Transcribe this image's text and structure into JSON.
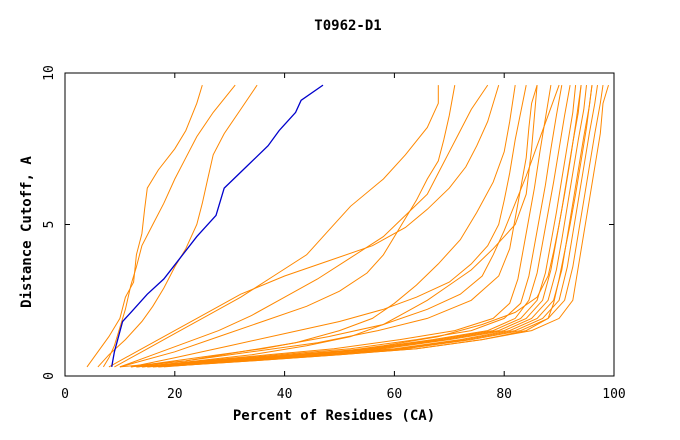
{
  "chart_data": {
    "type": "line",
    "title": "T0962-D1",
    "xlabel": "Percent of Residues (CA)",
    "ylabel": "Distance Cutoff, A",
    "xlim": [
      0,
      100
    ],
    "ylim": [
      0,
      10
    ],
    "xticks": [
      "0",
      "20",
      "40",
      "60",
      "80",
      "100"
    ],
    "yticks": [
      "0",
      "5",
      "10"
    ],
    "grid": false,
    "legend": "none",
    "colors": {
      "highlight": "#0000cc",
      "others": "#ff8800",
      "axes": "#000000",
      "background": "#ffffff"
    },
    "series": [
      {
        "highlight": true,
        "x": [
          8.5,
          9,
          10.5,
          12,
          15,
          18,
          21,
          24,
          27.5,
          29,
          33,
          37,
          39,
          42,
          43,
          47
        ],
        "y": [
          0.3,
          0.8,
          1.8,
          2.1,
          2.7,
          3.2,
          3.9,
          4.6,
          5.3,
          6.2,
          6.9,
          7.6,
          8.1,
          8.7,
          9.1,
          9.6
        ]
      },
      {
        "x": [
          4,
          6,
          8,
          10,
          11,
          12.5,
          13,
          14,
          14.5,
          15,
          17,
          20,
          22,
          24,
          25
        ],
        "y": [
          0.3,
          0.8,
          1.3,
          1.9,
          2.6,
          3.1,
          4.0,
          4.7,
          5.5,
          6.2,
          6.8,
          7.5,
          8.1,
          9.0,
          9.6
        ]
      },
      {
        "x": [
          7,
          8,
          9,
          10,
          11,
          12,
          13,
          14,
          16,
          18,
          20,
          22,
          24,
          27,
          31
        ],
        "y": [
          0.3,
          0.6,
          1.0,
          1.6,
          2.2,
          3.0,
          3.6,
          4.3,
          5.0,
          5.7,
          6.5,
          7.2,
          7.9,
          8.7,
          9.6
        ]
      },
      {
        "x": [
          6,
          8,
          11,
          14,
          16,
          18,
          20,
          22,
          24,
          25,
          26,
          27,
          29,
          32,
          35
        ],
        "y": [
          0.3,
          0.7,
          1.2,
          1.8,
          2.3,
          2.9,
          3.6,
          4.2,
          5.0,
          5.7,
          6.5,
          7.3,
          8.0,
          8.8,
          9.6
        ]
      },
      {
        "x": [
          9,
          14,
          20,
          26,
          32,
          38,
          44,
          48,
          52,
          58,
          62,
          66,
          68,
          68
        ],
        "y": [
          0.3,
          0.8,
          1.4,
          2.0,
          2.6,
          3.3,
          4.0,
          4.8,
          5.6,
          6.5,
          7.3,
          8.2,
          9.0,
          9.6
        ]
      },
      {
        "x": [
          10,
          16,
          22,
          28,
          34,
          40,
          46,
          52,
          58,
          62,
          66,
          68,
          70,
          72,
          74,
          77
        ],
        "y": [
          0.3,
          0.7,
          1.1,
          1.5,
          2.0,
          2.6,
          3.2,
          3.9,
          4.6,
          5.3,
          6.0,
          6.7,
          7.4,
          8.1,
          8.8,
          9.6
        ]
      },
      {
        "x": [
          10,
          20,
          28,
          36,
          44,
          50,
          55,
          58,
          60,
          62,
          64,
          66,
          68,
          69,
          70,
          71
        ],
        "y": [
          0.3,
          0.8,
          1.3,
          1.8,
          2.3,
          2.8,
          3.4,
          4.0,
          4.6,
          5.2,
          5.8,
          6.5,
          7.1,
          7.8,
          8.6,
          9.6
        ]
      },
      {
        "x": [
          8,
          14,
          20,
          26,
          32,
          40,
          48,
          56,
          62,
          66,
          70,
          73,
          75,
          77,
          79
        ],
        "y": [
          0.3,
          0.9,
          1.5,
          2.1,
          2.7,
          3.3,
          3.8,
          4.3,
          4.9,
          5.5,
          6.2,
          6.9,
          7.6,
          8.4,
          9.6
        ]
      },
      {
        "x": [
          12,
          20,
          30,
          40,
          50,
          58,
          64,
          70,
          74,
          77,
          79,
          80,
          81,
          82,
          84
        ],
        "y": [
          0.3,
          0.6,
          1.0,
          1.4,
          1.8,
          2.2,
          2.6,
          3.1,
          3.7,
          4.3,
          5.0,
          5.8,
          6.7,
          7.8,
          9.6
        ]
      },
      {
        "x": [
          12,
          22,
          32,
          42,
          50,
          56,
          60,
          64,
          68,
          72,
          75,
          78,
          80,
          81,
          82
        ],
        "y": [
          0.3,
          0.5,
          0.8,
          1.1,
          1.5,
          1.9,
          2.4,
          3.0,
          3.7,
          4.5,
          5.4,
          6.4,
          7.4,
          8.4,
          9.6
        ]
      },
      {
        "x": [
          14,
          24,
          34,
          44,
          52,
          58,
          62,
          66,
          70,
          74,
          78,
          82,
          84,
          85,
          86
        ],
        "y": [
          0.3,
          0.5,
          0.7,
          1.0,
          1.3,
          1.7,
          2.1,
          2.5,
          3.0,
          3.5,
          4.2,
          5.0,
          6.0,
          7.5,
          9.6
        ]
      },
      {
        "x": [
          13,
          25,
          37,
          49,
          61,
          71,
          78,
          81,
          82.5,
          83.5,
          84.5,
          85.5,
          86.5,
          87.5,
          88.5
        ],
        "y": [
          0.3,
          0.5,
          0.7,
          0.9,
          1.2,
          1.5,
          1.9,
          2.4,
          3.2,
          4.2,
          5.2,
          6.2,
          7.4,
          8.5,
          9.6
        ]
      },
      {
        "x": [
          13,
          26,
          39,
          52,
          64,
          74,
          80,
          83,
          84.5,
          85.5,
          86.5,
          87.5,
          88.5,
          89.5,
          90.5
        ],
        "y": [
          0.3,
          0.5,
          0.7,
          0.9,
          1.2,
          1.5,
          1.9,
          2.4,
          3.3,
          4.3,
          5.3,
          6.3,
          7.5,
          8.6,
          9.6
        ]
      },
      {
        "x": [
          13,
          27,
          41,
          55,
          67,
          77,
          82,
          84.5,
          86,
          87,
          88,
          89,
          90,
          91,
          92
        ],
        "y": [
          0.3,
          0.5,
          0.7,
          0.9,
          1.2,
          1.5,
          1.9,
          2.5,
          3.4,
          4.4,
          5.4,
          6.4,
          7.5,
          8.6,
          9.6
        ]
      },
      {
        "x": [
          14,
          28,
          42,
          56,
          68,
          78,
          83,
          86,
          87.5,
          88.5,
          89.5,
          90.5,
          91.5,
          92.5,
          93
        ],
        "y": [
          0.3,
          0.5,
          0.7,
          0.9,
          1.2,
          1.5,
          1.9,
          2.5,
          3.4,
          4.4,
          5.4,
          6.5,
          7.6,
          8.7,
          9.6
        ]
      },
      {
        "x": [
          14,
          29,
          43,
          57,
          69,
          79,
          84,
          87,
          88.5,
          89.5,
          90.5,
          91.5,
          92.5,
          93.5,
          94
        ],
        "y": [
          0.3,
          0.5,
          0.7,
          0.9,
          1.2,
          1.5,
          1.9,
          2.5,
          3.5,
          4.5,
          5.5,
          6.6,
          7.7,
          8.7,
          9.6
        ]
      },
      {
        "x": [
          15,
          30,
          44,
          58,
          70,
          80,
          85,
          88,
          89.5,
          90.5,
          91.5,
          92.5,
          93.5,
          94.5,
          95
        ],
        "y": [
          0.3,
          0.5,
          0.7,
          0.9,
          1.2,
          1.5,
          1.9,
          2.5,
          3.5,
          4.5,
          5.6,
          6.7,
          7.8,
          8.8,
          9.6
        ]
      },
      {
        "x": [
          15,
          31,
          46,
          60,
          72,
          81,
          86,
          89,
          90.5,
          91.5,
          92.5,
          93.5,
          94.5,
          95.5,
          96
        ],
        "y": [
          0.3,
          0.5,
          0.7,
          0.9,
          1.2,
          1.5,
          1.9,
          2.5,
          3.5,
          4.6,
          5.7,
          6.8,
          7.9,
          8.9,
          9.6
        ]
      },
      {
        "x": [
          16,
          32,
          47,
          61,
          73,
          82,
          87,
          90,
          91.5,
          92.5,
          93.5,
          94.5,
          95.5,
          96.5,
          97
        ],
        "y": [
          0.3,
          0.5,
          0.7,
          0.9,
          1.2,
          1.5,
          1.9,
          2.5,
          3.6,
          4.7,
          5.8,
          6.9,
          8.0,
          9.0,
          9.6
        ]
      },
      {
        "x": [
          16,
          33,
          48,
          62,
          74,
          83,
          88,
          91,
          92.5,
          93.5,
          94.5,
          95.5,
          96.5,
          97.5,
          98
        ],
        "y": [
          0.3,
          0.5,
          0.7,
          0.9,
          1.2,
          1.5,
          1.9,
          2.5,
          3.6,
          4.7,
          5.8,
          6.9,
          8.0,
          9.0,
          9.6
        ]
      },
      {
        "x": [
          17,
          34,
          50,
          64,
          76,
          85,
          90,
          92.5,
          93.5,
          94.5,
          95.5,
          96.5,
          97.5,
          98,
          99
        ],
        "y": [
          0.3,
          0.5,
          0.7,
          0.9,
          1.2,
          1.5,
          1.9,
          2.5,
          3.6,
          4.7,
          5.8,
          6.9,
          8.0,
          9.0,
          9.6
        ]
      },
      {
        "x": [
          17,
          34,
          50,
          64,
          76,
          84,
          88,
          89,
          90,
          91,
          92,
          93,
          94,
          95,
          96
        ],
        "y": [
          0.3,
          0.5,
          0.7,
          0.9,
          1.2,
          1.5,
          1.9,
          2.4,
          3.2,
          4.1,
          5.0,
          6.0,
          7.1,
          8.2,
          9.6
        ]
      },
      {
        "x": [
          10,
          22,
          34,
          46,
          57,
          66,
          74,
          79,
          81,
          82,
          83,
          84,
          84.5,
          85,
          86
        ],
        "y": [
          0.3,
          0.5,
          0.8,
          1.1,
          1.5,
          1.9,
          2.5,
          3.3,
          4.2,
          5.2,
          6.2,
          7.2,
          8.2,
          9.0,
          9.6
        ]
      },
      {
        "x": [
          12,
          24,
          36,
          48,
          58,
          66,
          72,
          76,
          78,
          80,
          82,
          84,
          86,
          88,
          90
        ],
        "y": [
          0.3,
          0.6,
          0.9,
          1.3,
          1.7,
          2.2,
          2.7,
          3.3,
          4.0,
          4.8,
          5.7,
          6.6,
          7.6,
          8.6,
          9.6
        ]
      },
      {
        "x": [
          18,
          32,
          46,
          58,
          68,
          76,
          82,
          86,
          88,
          89,
          90,
          91,
          92,
          93,
          94
        ],
        "y": [
          0.3,
          0.5,
          0.7,
          1.0,
          1.3,
          1.7,
          2.1,
          2.6,
          3.3,
          4.1,
          5.0,
          6.0,
          7.1,
          8.3,
          9.6
        ]
      }
    ]
  }
}
